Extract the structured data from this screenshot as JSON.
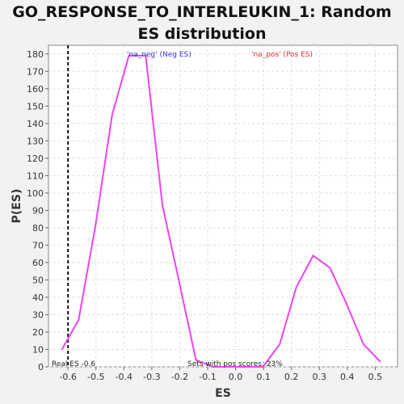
{
  "chart_data": {
    "type": "line",
    "title_line1": "GO_RESPONSE_TO_INTERLEUKIN_1: Random",
    "title_line2": "ES distribution",
    "xlabel": "ES",
    "ylabel": "P(ES)",
    "xlim": [
      -0.67,
      0.58
    ],
    "ylim": [
      0,
      185
    ],
    "x_ticks": [
      -0.6,
      -0.5,
      -0.4,
      -0.3,
      -0.2,
      -0.1,
      0.0,
      0.1,
      0.2,
      0.3,
      0.4,
      0.5
    ],
    "x_tick_labels": [
      "-0.6",
      "-0.5",
      "-0.4",
      "-0.3",
      "-0.2",
      "-0.1",
      "0.0",
      "0.1",
      "0.2",
      "0.3",
      "0.4",
      "0.5"
    ],
    "y_ticks": [
      0,
      10,
      20,
      30,
      40,
      50,
      60,
      70,
      80,
      90,
      100,
      110,
      120,
      130,
      140,
      150,
      160,
      170,
      180
    ],
    "grid": true,
    "series": [
      {
        "name": "",
        "color": "#ee44ee",
        "points": [
          [
            -0.622,
            10
          ],
          [
            -0.562,
            27
          ],
          [
            -0.502,
            81
          ],
          [
            -0.442,
            145
          ],
          [
            -0.382,
            179
          ],
          [
            -0.322,
            179
          ],
          [
            -0.262,
            93
          ],
          [
            -0.202,
            49
          ],
          [
            -0.142,
            4
          ],
          [
            -0.082,
            0
          ],
          [
            -0.022,
            0
          ],
          [
            0.038,
            0
          ],
          [
            0.098,
            0
          ],
          [
            0.158,
            13
          ],
          [
            0.218,
            46
          ],
          [
            0.278,
            64
          ],
          [
            0.338,
            57
          ],
          [
            0.398,
            36
          ],
          [
            0.458,
            13
          ],
          [
            0.518,
            3
          ]
        ]
      }
    ],
    "real_es_value": -0.6,
    "real_es_label": "Real ES -0.6",
    "pos_scores_label": "Sets with pos scores: 23%",
    "neg_legend": "'na_neg' (Neg ES)",
    "pos_legend": "'na_pos' (Pos ES)",
    "neg_color": "#3333dd",
    "pos_color": "#dd3333"
  }
}
